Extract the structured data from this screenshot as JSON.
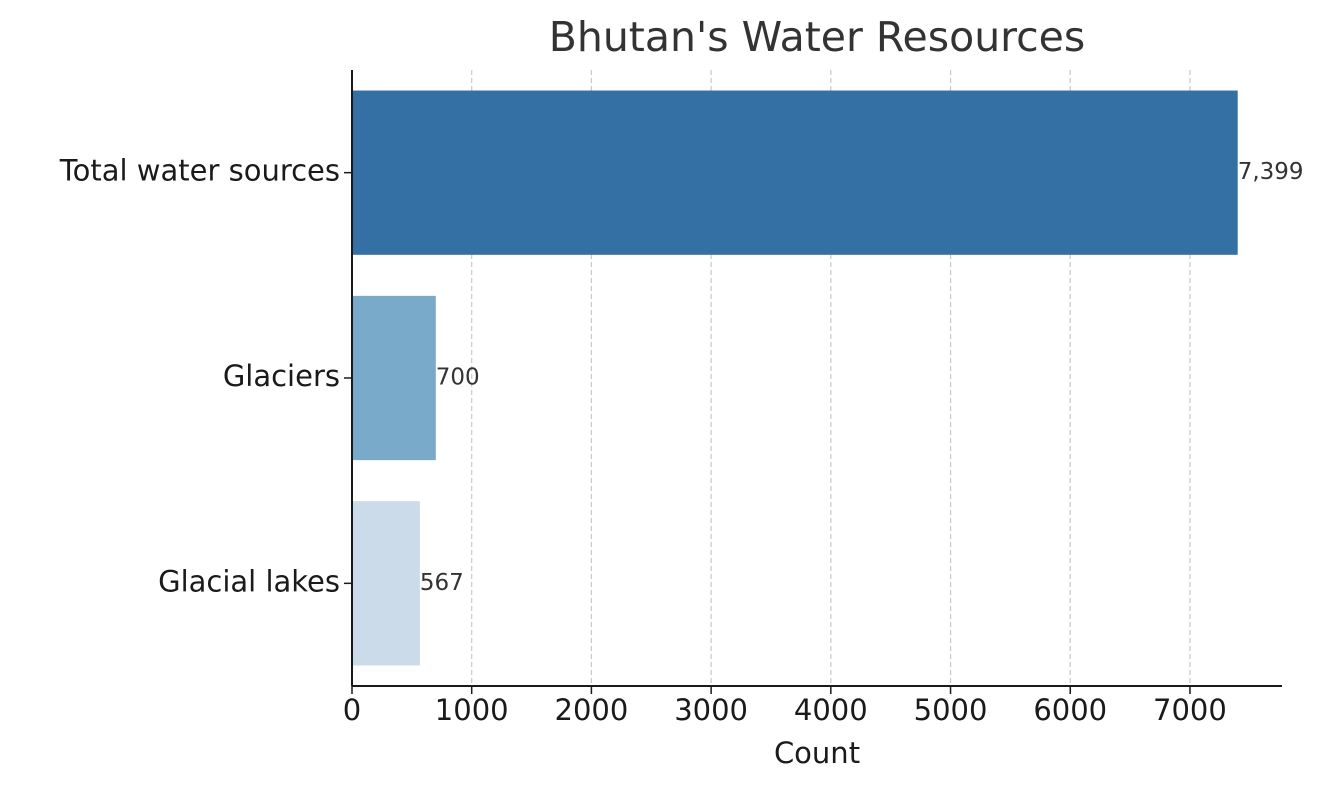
{
  "chart_data": {
    "type": "barh",
    "title": "Bhutan's Water Resources",
    "x_label": "Count",
    "categories": [
      "Total water sources",
      "Glaciers",
      "Glacial lakes"
    ],
    "values": [
      7399,
      700,
      567
    ],
    "value_labels": [
      "7,399",
      "700",
      "567"
    ],
    "colors": [
      "#3470a3",
      "#7aaac9",
      "#cbdbea"
    ],
    "xlim": [
      0,
      7769
    ],
    "xticks": [
      0,
      1000,
      2000,
      3000,
      4000,
      5000,
      6000,
      7000
    ],
    "grid": true
  }
}
